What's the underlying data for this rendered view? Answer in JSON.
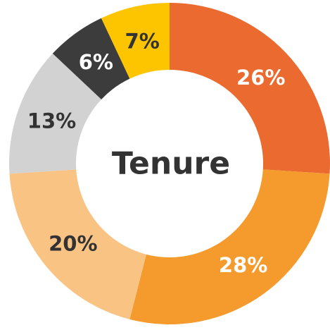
{
  "chart_data": {
    "type": "donut",
    "title": "Tenure",
    "values": [
      26,
      28,
      20,
      13,
      6,
      7
    ],
    "value_labels": [
      "26%",
      "28%",
      "20%",
      "13%",
      "6%",
      "7%"
    ],
    "colors": [
      "#ea6a2f",
      "#f59b2d",
      "#f9c384",
      "#d2d2d2",
      "#3c3c3c",
      "#fdc500"
    ],
    "label_colors": [
      "#ffffff",
      "#ffffff",
      "#333333",
      "#333333",
      "#ffffff",
      "#333333"
    ]
  }
}
